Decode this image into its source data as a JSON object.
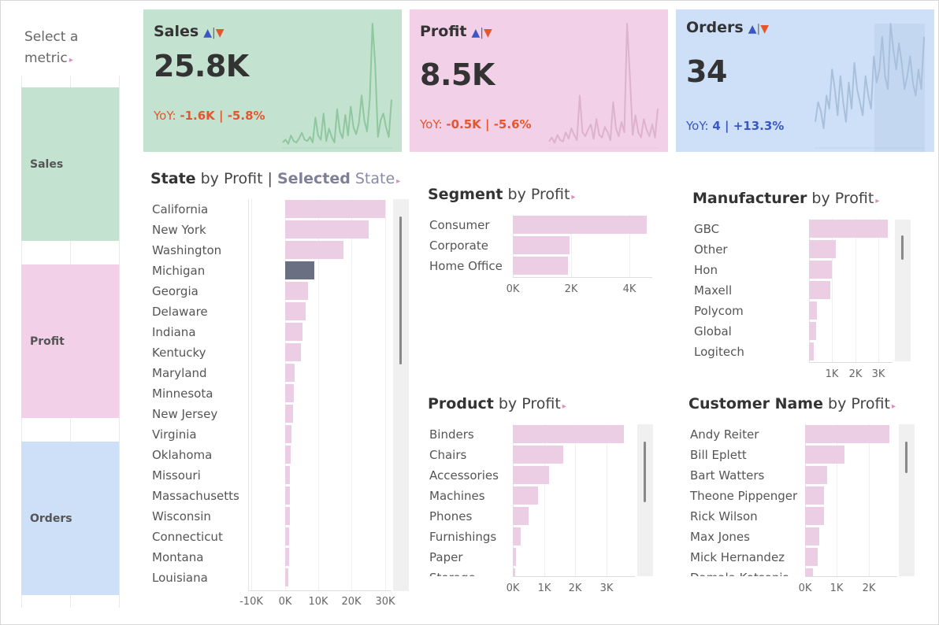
{
  "metric_selector": {
    "title": "Select a metric",
    "items": [
      {
        "label": "Sales",
        "color": "#c3e2d0"
      },
      {
        "label": "Profit",
        "color": "#f2d0e8"
      },
      {
        "label": "Orders",
        "color": "#cde0f7"
      }
    ]
  },
  "kpis": [
    {
      "title": "Sales",
      "value": "25.8K",
      "yoy_label": "YoY:",
      "yoy_value": "-1.6K | -5.8%",
      "yoy_color": "#e4572e",
      "bg": "#c3e2d0",
      "line": "#8fc79e",
      "spark": [
        4,
        6,
        3,
        9,
        5,
        4,
        7,
        11,
        6,
        5,
        8,
        4,
        22,
        9,
        6,
        25,
        5,
        14,
        8,
        4,
        28,
        12,
        7,
        24,
        9,
        30,
        15,
        10,
        18,
        38,
        20,
        12,
        35,
        90,
        60,
        8,
        20,
        25,
        15,
        8,
        35
      ]
    },
    {
      "title": "Profit",
      "value": "8.5K",
      "yoy_label": "YoY:",
      "yoy_value": "-0.5K | -5.6%",
      "yoy_color": "#e4572e",
      "bg": "#f2d0e8",
      "line": "#dcb2cc",
      "spark": [
        5,
        8,
        4,
        10,
        6,
        5,
        12,
        7,
        15,
        10,
        6,
        40,
        12,
        9,
        14,
        18,
        7,
        22,
        10,
        8,
        16,
        12,
        6,
        35,
        15,
        9,
        20,
        12,
        95,
        55,
        10,
        25,
        12,
        8,
        22,
        14,
        9,
        18,
        8,
        30
      ]
    },
    {
      "title": "Orders",
      "value": "34",
      "yoy_label": "YoY:",
      "yoy_value": "4 | +13.3%",
      "yoy_color": "#3a57c4",
      "bg": "#cde0f7",
      "line": "#a9c0dc",
      "spark": [
        20,
        35,
        28,
        15,
        40,
        30,
        60,
        45,
        25,
        55,
        35,
        20,
        50,
        30,
        65,
        45,
        35,
        25,
        55,
        40,
        30,
        70,
        50,
        60,
        85,
        55,
        45,
        95,
        75,
        60,
        80,
        65,
        45,
        55,
        70,
        50,
        40,
        60,
        45,
        85
      ]
    }
  ],
  "sheets": {
    "state": {
      "title_dim": "State",
      "title_mid": " by ",
      "title_measure": "Profit",
      "pipe": " | ",
      "selected_bold": "Selected",
      "selected_rest": " State"
    },
    "segment": {
      "title_dim": "Segment",
      "title_mid": " by ",
      "title_measure": "Profit"
    },
    "manufacturer": {
      "title_dim": "Manufacturer",
      "title_mid": " by ",
      "title_measure": "Profit"
    },
    "product": {
      "title_dim": "Product",
      "title_mid": " by ",
      "title_measure": "Profit"
    },
    "customer": {
      "title_dim": "Customer Name",
      "title_mid": " by ",
      "title_measure": "Profit"
    }
  },
  "chart_data": [
    {
      "type": "bar",
      "orientation": "horizontal",
      "title": "State by Profit | Selected State",
      "categories": [
        "California",
        "New York",
        "Washington",
        "Michigan",
        "Georgia",
        "Delaware",
        "Indiana",
        "Kentucky",
        "Maryland",
        "Minnesota",
        "New Jersey",
        "Virginia",
        "Oklahoma",
        "Missouri",
        "Massachusetts",
        "Wisconsin",
        "Connecticut",
        "Montana",
        "Louisiana"
      ],
      "values": [
        30000,
        25000,
        17500,
        8800,
        6800,
        6200,
        5200,
        4800,
        2800,
        2600,
        2400,
        1800,
        1600,
        1500,
        1400,
        1300,
        1200,
        1100,
        1000
      ],
      "highlighted": "Michigan",
      "highlight_color": "#6b6f82",
      "bar_color": "#ebcde4",
      "xticks": [
        "-10K",
        "0K",
        "10K",
        "20K",
        "30K"
      ],
      "xlim": [
        -11000,
        32000
      ]
    },
    {
      "type": "bar",
      "orientation": "horizontal",
      "title": "Segment by Profit",
      "categories": [
        "Consumer",
        "Corporate",
        "Home Office"
      ],
      "values": [
        4600,
        1950,
        1900
      ],
      "bar_color": "#ebcde4",
      "xticks": [
        "0K",
        "2K",
        "4K"
      ],
      "xlim": [
        0,
        4800
      ]
    },
    {
      "type": "bar",
      "orientation": "horizontal",
      "title": "Manufacturer by Profit",
      "categories": [
        "GBC",
        "Other",
        "Hon",
        "Maxell",
        "Polycom",
        "Global",
        "Logitech"
      ],
      "values": [
        3400,
        1150,
        1000,
        900,
        350,
        300,
        200
      ],
      "bar_color": "#ebcde4",
      "xticks": [
        "1K",
        "2K",
        "3K"
      ],
      "xlim": [
        0,
        3600
      ]
    },
    {
      "type": "bar",
      "orientation": "horizontal",
      "title": "Product by Profit",
      "categories": [
        "Binders",
        "Chairs",
        "Accessories",
        "Machines",
        "Phones",
        "Furnishings",
        "Paper",
        "Storage"
      ],
      "values": [
        3550,
        1600,
        1150,
        800,
        500,
        250,
        100,
        80
      ],
      "bar_color": "#ebcde4",
      "xticks": [
        "0K",
        "1K",
        "2K",
        "3K"
      ],
      "xlim": [
        0,
        3900
      ]
    },
    {
      "type": "bar",
      "orientation": "horizontal",
      "title": "Customer Name by Profit",
      "categories": [
        "Andy Reiter",
        "Bill Eplett",
        "Bart Watters",
        "Theone Pippenger",
        "Rick Wilson",
        "Max Jones",
        "Mick Hernandez",
        "Damala Kotsonis"
      ],
      "values": [
        2650,
        1250,
        700,
        600,
        600,
        450,
        400,
        250
      ],
      "bar_color": "#ebcde4",
      "xticks": [
        "0K",
        "1K",
        "2K"
      ],
      "xlim": [
        0,
        2900
      ]
    }
  ]
}
